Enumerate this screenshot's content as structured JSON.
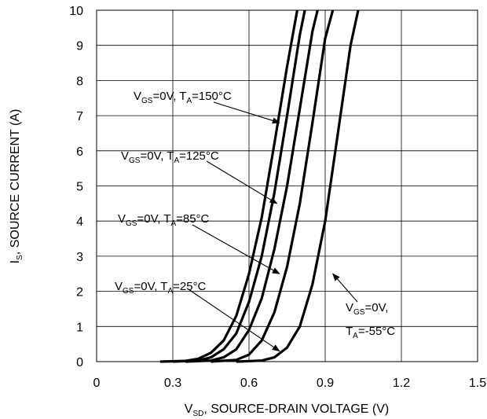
{
  "chart_data": {
    "type": "line",
    "title": "",
    "xlabel": {
      "main": "V",
      "sub": "SD",
      "rest": ", SOURCE-DRAIN VOLTAGE (V)"
    },
    "ylabel": {
      "main": "I",
      "sub": "S",
      "rest": ", SOURCE CURRENT (A)"
    },
    "xlim": [
      0,
      1.5
    ],
    "ylim": [
      0,
      10
    ],
    "x_ticks": [
      "0",
      "0.3",
      "0.6",
      "0.9",
      "1.2",
      "1.5"
    ],
    "y_ticks": [
      "0",
      "1",
      "2",
      "3",
      "4",
      "5",
      "6",
      "7",
      "8",
      "9",
      "10"
    ],
    "grid": true,
    "series": [
      {
        "name": "VGS=0V, TA=150°C",
        "x": [
          0.25,
          0.35,
          0.4,
          0.45,
          0.5,
          0.55,
          0.6,
          0.65,
          0.7,
          0.75,
          0.79
        ],
        "y": [
          0,
          0.02,
          0.08,
          0.25,
          0.6,
          1.3,
          2.5,
          4.1,
          6.2,
          8.4,
          10
        ]
      },
      {
        "name": "VGS=0V, TA=125°C",
        "x": [
          0.3,
          0.4,
          0.45,
          0.5,
          0.55,
          0.6,
          0.65,
          0.7,
          0.75,
          0.8,
          0.82
        ],
        "y": [
          0,
          0.03,
          0.12,
          0.35,
          0.8,
          1.7,
          3.0,
          4.8,
          7.0,
          9.3,
          10
        ]
      },
      {
        "name": "VGS=0V, TA=85°C",
        "x": [
          0.35,
          0.45,
          0.5,
          0.55,
          0.6,
          0.65,
          0.7,
          0.75,
          0.8,
          0.85,
          0.87
        ],
        "y": [
          0,
          0.03,
          0.12,
          0.35,
          0.9,
          1.8,
          3.2,
          5.0,
          7.2,
          9.4,
          10
        ]
      },
      {
        "name": "VGS=0V, TA=25°C",
        "x": [
          0.45,
          0.55,
          0.6,
          0.65,
          0.7,
          0.75,
          0.8,
          0.85,
          0.9,
          0.93
        ],
        "y": [
          0,
          0.05,
          0.2,
          0.6,
          1.4,
          2.7,
          4.5,
          6.8,
          9.2,
          10
        ]
      },
      {
        "name": "VGS=0V, TA=-55°C",
        "x": [
          0.55,
          0.65,
          0.7,
          0.75,
          0.8,
          0.85,
          0.9,
          0.95,
          1.0,
          1.03
        ],
        "y": [
          0,
          0.03,
          0.12,
          0.4,
          1.0,
          2.2,
          4.0,
          6.5,
          9.0,
          10
        ]
      }
    ],
    "annotations": [
      {
        "vgs": "0V",
        "ta": "150°C",
        "target_x": 0.72,
        "target_y": 6.8
      },
      {
        "vgs": "0V",
        "ta": "125°C",
        "target_x": 0.71,
        "target_y": 4.5
      },
      {
        "vgs": "0V",
        "ta": "85°C",
        "target_x": 0.72,
        "target_y": 2.5
      },
      {
        "vgs": "0V",
        "ta": "25°C",
        "target_x": 0.72,
        "target_y": 0.3
      },
      {
        "vgs": "0V,",
        "ta": "-55°C",
        "target_x": 0.93,
        "target_y": 2.5
      }
    ]
  }
}
